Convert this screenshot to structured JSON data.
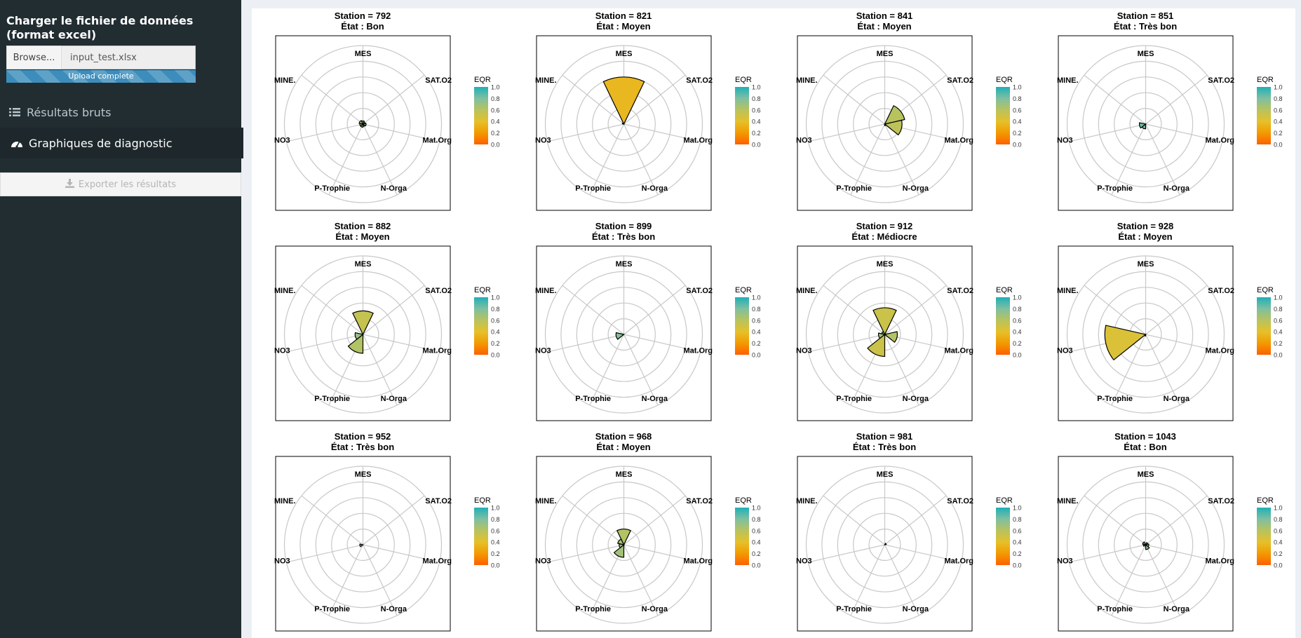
{
  "sidebar": {
    "upload_label": "Charger le fichier de données (format excel)",
    "browse_label": "Browse...",
    "file_name": "input_test.xlsx",
    "upload_status": "Upload complete",
    "upload_progress": 1.0,
    "menu": [
      {
        "label": "Résultats bruts",
        "icon": "list-icon"
      },
      {
        "label": "Graphiques de diagnostic",
        "icon": "dashboard-icon"
      }
    ],
    "export_label": "Exporter les résultats"
  },
  "colors": {
    "sidebar_bg": "#222d32",
    "accent": "#3c8dbc",
    "eqr_scale": [
      "#ff5f00",
      "#f29a00",
      "#e6c02a",
      "#b8c35e",
      "#7fbfa0",
      "#20b0b8"
    ]
  },
  "chart_data": {
    "type": "polar-bar",
    "axes": [
      "MES",
      "SAT.O2",
      "Mat.Org",
      "N-Orga",
      "P-Trophie",
      "NO3",
      "MINE."
    ],
    "legend": {
      "title": "EQR",
      "ticks": [
        "1.0",
        "0.8",
        "0.6",
        "0.4",
        "0.2",
        "0.0"
      ],
      "range": [
        0,
        1
      ]
    },
    "radial_max": 5,
    "panels": [
      {
        "title": "Station = 792",
        "subtitle": "État : Bon",
        "values": [
          0.2,
          0.15,
          0.2,
          0.15,
          0.2,
          0.2,
          0.25
        ],
        "eqr": [
          0.7,
          0.75,
          0.7,
          0.72,
          0.7,
          0.7,
          0.68
        ]
      },
      {
        "title": "Station = 821",
        "subtitle": "État : Moyen",
        "values": [
          3.0,
          0,
          0,
          0,
          0,
          0,
          0.1
        ],
        "eqr": [
          0.35,
          0.5,
          0.5,
          0.5,
          0.5,
          0.5,
          0.5
        ]
      },
      {
        "title": "Station = 841",
        "subtitle": "État : Moyen",
        "values": [
          0,
          1.3,
          1.1,
          0.1,
          0,
          0,
          0
        ],
        "eqr": [
          0.6,
          0.6,
          0.58,
          0.6,
          0.6,
          0.6,
          0.6
        ]
      },
      {
        "title": "Station = 851",
        "subtitle": "État : Très bon",
        "values": [
          0,
          0,
          0,
          0,
          0.3,
          0.4,
          0
        ],
        "eqr": [
          0.8,
          0.8,
          0.8,
          0.8,
          0.82,
          0.85,
          0.8
        ]
      },
      {
        "title": "Station = 882",
        "subtitle": "État : Moyen",
        "values": [
          1.5,
          0,
          0,
          0,
          1.2,
          0.5,
          0
        ],
        "eqr": [
          0.55,
          0.6,
          0.6,
          0.6,
          0.62,
          0.72,
          0.6
        ]
      },
      {
        "title": "Station = 899",
        "subtitle": "État : Très bon",
        "values": [
          0,
          0,
          0,
          0,
          0,
          0.5,
          0
        ],
        "eqr": [
          0.8,
          0.8,
          0.8,
          0.8,
          0.8,
          0.78,
          0.8
        ]
      },
      {
        "title": "Station = 912",
        "subtitle": "État : Médiocre",
        "values": [
          1.7,
          0,
          0.8,
          0,
          1.4,
          0.4,
          0.2
        ],
        "eqr": [
          0.52,
          0.55,
          0.62,
          0.55,
          0.52,
          0.7,
          0.68
        ]
      },
      {
        "title": "Station = 928",
        "subtitle": "État : Moyen",
        "values": [
          0,
          0,
          0,
          0,
          0.1,
          2.6,
          0
        ],
        "eqr": [
          0.5,
          0.5,
          0.5,
          0.5,
          0.5,
          0.45,
          0.5
        ]
      },
      {
        "title": "Station = 952",
        "subtitle": "État : Très bon",
        "values": [
          0,
          0,
          0,
          0,
          0,
          0.2,
          0
        ],
        "eqr": [
          0.8,
          0.8,
          0.8,
          0.8,
          0.8,
          0.8,
          0.8
        ]
      },
      {
        "title": "Station = 968",
        "subtitle": "État : Moyen",
        "values": [
          1.0,
          0,
          0,
          0,
          0.8,
          0.3,
          0.4
        ],
        "eqr": [
          0.62,
          0.6,
          0.6,
          0.6,
          0.68,
          0.7,
          0.66
        ]
      },
      {
        "title": "Station = 981",
        "subtitle": "État : Très bon",
        "values": [
          0,
          0.1,
          0,
          0,
          0,
          0,
          0
        ],
        "eqr": [
          0.8,
          0.8,
          0.8,
          0.8,
          0.8,
          0.8,
          0.8
        ]
      },
      {
        "title": "Station = 1043",
        "subtitle": "État : Bon",
        "values": [
          0,
          0.15,
          0.2,
          0.3,
          0,
          0.15,
          0.2
        ],
        "eqr": [
          0.7,
          0.7,
          0.72,
          0.75,
          0.7,
          0.7,
          0.68
        ]
      }
    ]
  }
}
